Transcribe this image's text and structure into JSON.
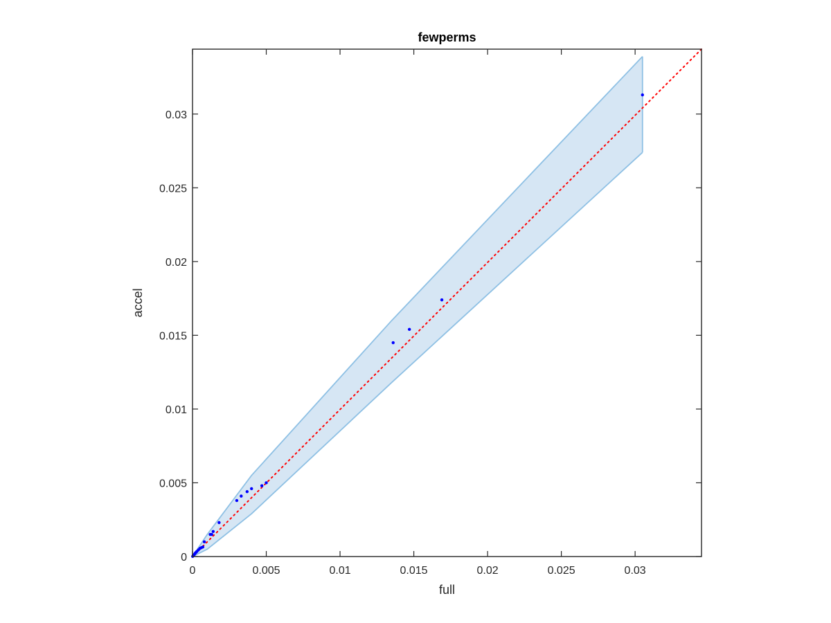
{
  "chart_data": {
    "type": "scatter",
    "title": "fewperms",
    "xlabel": "full",
    "ylabel": "accel",
    "xlim": [
      0,
      0.0345
    ],
    "ylim": [
      0,
      0.0344
    ],
    "x_ticks": [
      0,
      0.005,
      0.01,
      0.015,
      0.02,
      0.025,
      0.03
    ],
    "x_tick_labels": [
      "0",
      "0.005",
      "0.01",
      "0.015",
      "0.02",
      "0.025",
      "0.03"
    ],
    "y_ticks": [
      0,
      0.005,
      0.01,
      0.015,
      0.02,
      0.025,
      0.03
    ],
    "y_tick_labels": [
      "0",
      "0.005",
      "0.01",
      "0.015",
      "0.02",
      "0.025",
      "0.03"
    ],
    "grid": false,
    "colors": {
      "points": "#0000ff",
      "reference_line": "#ff0000",
      "band_fill": "#d6e6f4",
      "band_edge": "#8ec0e4",
      "axis": "#262626"
    },
    "series": [
      {
        "points": [
          [
            1e-05,
            1e-05
          ],
          [
            5e-05,
            8e-05
          ],
          [
            0.0001,
            0.00012
          ],
          [
            0.00015,
            0.00018
          ],
          [
            0.0002,
            0.00025
          ],
          [
            0.00025,
            0.0003
          ],
          [
            0.0003,
            0.00035
          ],
          [
            0.0004,
            0.00045
          ],
          [
            0.0005,
            0.00055
          ],
          [
            0.0006,
            0.0006
          ],
          [
            0.0007,
            0.00065
          ],
          [
            0.0008,
            0.001
          ],
          [
            0.0012,
            0.0015
          ],
          [
            0.0013,
            0.0015
          ],
          [
            0.0014,
            0.0017
          ],
          [
            0.0018,
            0.0023
          ],
          [
            0.003,
            0.0038
          ],
          [
            0.0033,
            0.0041
          ],
          [
            0.0037,
            0.0044
          ],
          [
            0.004,
            0.0046
          ],
          [
            0.0047,
            0.0048
          ],
          [
            0.005,
            0.005
          ],
          [
            0.0136,
            0.0145
          ],
          [
            0.0147,
            0.0154
          ],
          [
            0.0169,
            0.0174
          ],
          [
            0.0305,
            0.0313
          ]
        ]
      }
    ],
    "reference_line": {
      "style": "dotted",
      "from": [
        0,
        0
      ],
      "to": [
        0.0345,
        0.0344
      ]
    },
    "band": {
      "x": [
        0,
        0.001,
        0.004,
        0.0135,
        0.0305
      ],
      "upper": [
        0,
        0.0015,
        0.0055,
        0.016,
        0.0339
      ],
      "lower": [
        0,
        0.0005,
        0.0029,
        0.0118,
        0.0274
      ]
    }
  }
}
